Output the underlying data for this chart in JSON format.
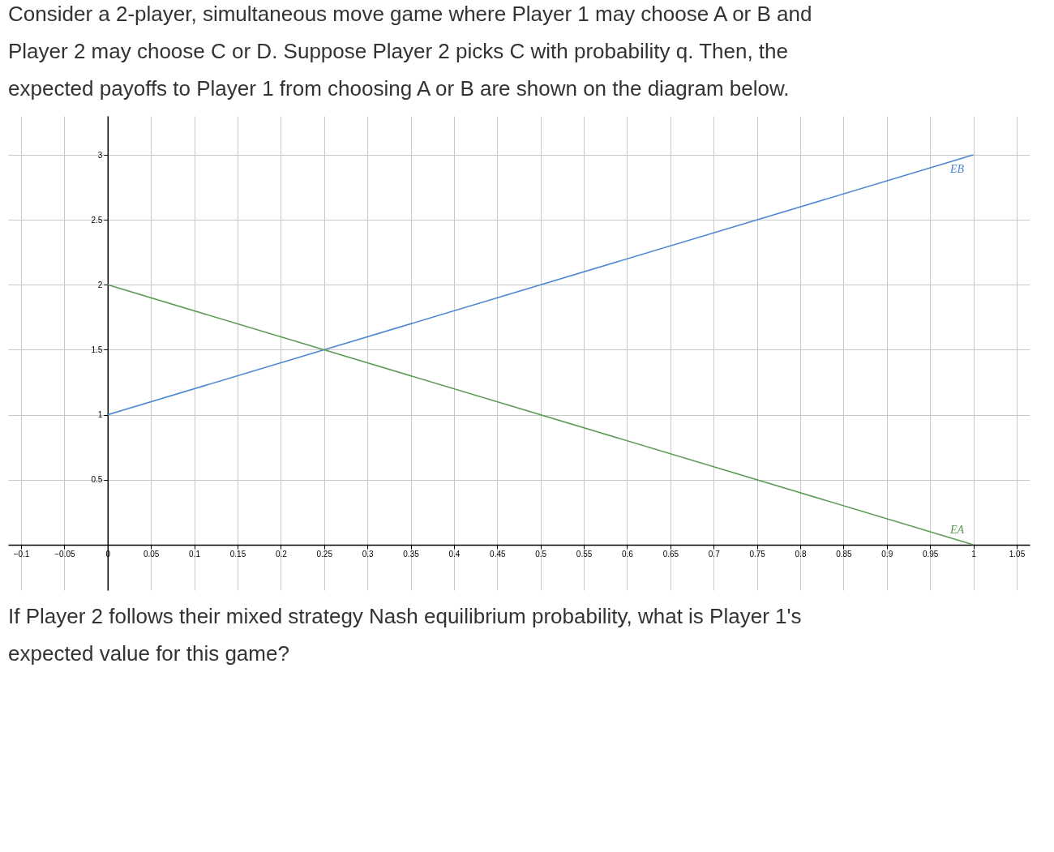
{
  "chart_data": {
    "type": "line",
    "title": "Consider a 2-player, simultaneous move game where Player 1 may choose A or B and Player 2 may choose C or D.  Suppose Player 2 picks C with probability q.  Then, the expected payoffs to Player 1 from choosing A or B are shown on the diagram below.",
    "annotations": [
      "If Player 2 follows their mixed strategy Nash equilibrium probability, what is Player 1's expected value for this game?"
    ],
    "x": [
      0,
      1
    ],
    "series": [
      {
        "name": "EB",
        "color": "#4a86d0",
        "values": [
          1,
          3
        ]
      },
      {
        "name": "EA",
        "color": "#5a9a52",
        "values": [
          2,
          0
        ]
      }
    ],
    "xlim": [
      -0.115,
      1.065
    ],
    "ylim": [
      -0.35,
      3.3
    ],
    "xticks": [
      {
        "value": -0.1,
        "label": "−0.1"
      },
      {
        "value": -0.05,
        "label": "−0.05"
      },
      0,
      0.05,
      0.1,
      0.15,
      0.2,
      0.25,
      0.3,
      0.35,
      0.4,
      0.45,
      0.5,
      0.55,
      0.6,
      0.65,
      0.7,
      0.75,
      0.8,
      0.85,
      0.9,
      0.95,
      1,
      1.05
    ],
    "yticks": [
      0.5,
      1,
      1.5,
      2,
      2.5,
      3
    ],
    "grid": true,
    "legend": false,
    "marker": "none",
    "line_style": "solid"
  }
}
